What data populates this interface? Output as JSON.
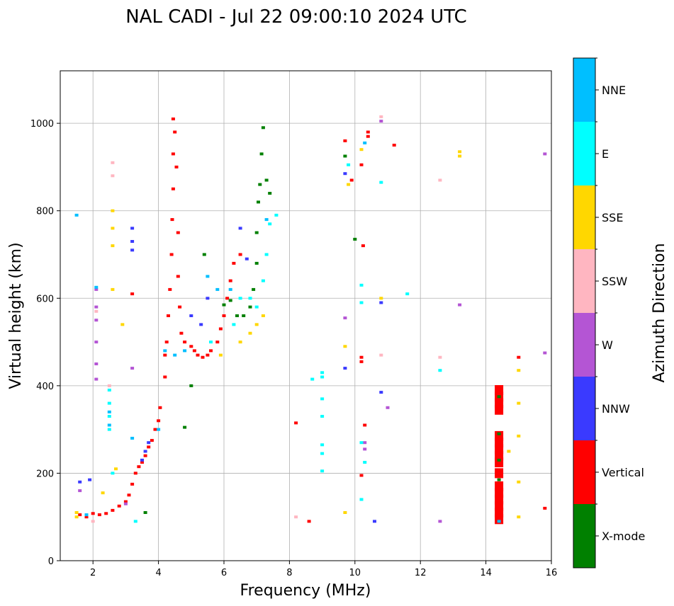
{
  "chart_data": {
    "type": "scatter",
    "title": "NAL CADI - Jul 22 09:00:10 2024 UTC",
    "xlabel": "Frequency (MHz)",
    "ylabel": "Virtual height (km)",
    "xlim": [
      1,
      16
    ],
    "ylim": [
      0,
      1120
    ],
    "xticks": [
      2,
      4,
      6,
      8,
      10,
      12,
      14,
      16
    ],
    "yticks": [
      0,
      200,
      400,
      600,
      800,
      1000
    ],
    "grid": true,
    "colorbar": {
      "label": "Azimuth Direction",
      "categories": [
        {
          "name": "X-mode",
          "color": "#008000"
        },
        {
          "name": "Vertical",
          "color": "#ff0000"
        },
        {
          "name": "NNW",
          "color": "#3a3aff"
        },
        {
          "name": "W",
          "color": "#b455d4"
        },
        {
          "name": "SSW",
          "color": "#ffb6c1"
        },
        {
          "name": "SSE",
          "color": "#ffd700"
        },
        {
          "name": "E",
          "color": "#00ffff"
        },
        {
          "name": "NNE",
          "color": "#00bfff"
        }
      ]
    },
    "series": [
      {
        "name": "Vertical",
        "points": [
          [
            1.6,
            105
          ],
          [
            1.8,
            100
          ],
          [
            2.0,
            108
          ],
          [
            2.2,
            105
          ],
          [
            2.4,
            108
          ],
          [
            2.6,
            115
          ],
          [
            2.8,
            125
          ],
          [
            3.0,
            135
          ],
          [
            3.1,
            150
          ],
          [
            3.2,
            175
          ],
          [
            3.3,
            200
          ],
          [
            3.4,
            215
          ],
          [
            3.5,
            225
          ],
          [
            3.6,
            240
          ],
          [
            3.7,
            260
          ],
          [
            3.8,
            275
          ],
          [
            3.9,
            300
          ],
          [
            4.0,
            320
          ],
          [
            4.05,
            350
          ],
          [
            4.2,
            420
          ],
          [
            4.2,
            470
          ],
          [
            4.25,
            500
          ],
          [
            4.3,
            560
          ],
          [
            4.35,
            620
          ],
          [
            4.4,
            700
          ],
          [
            4.42,
            780
          ],
          [
            4.45,
            850
          ],
          [
            4.45,
            930
          ],
          [
            4.45,
            1010
          ],
          [
            4.5,
            980
          ],
          [
            4.55,
            900
          ],
          [
            4.6,
            750
          ],
          [
            4.6,
            650
          ],
          [
            4.65,
            580
          ],
          [
            4.7,
            520
          ],
          [
            4.8,
            500
          ],
          [
            5.0,
            490
          ],
          [
            5.1,
            480
          ],
          [
            5.2,
            470
          ],
          [
            5.35,
            465
          ],
          [
            5.5,
            470
          ],
          [
            5.6,
            480
          ],
          [
            5.8,
            500
          ],
          [
            5.9,
            530
          ],
          [
            6.0,
            560
          ],
          [
            6.1,
            600
          ],
          [
            6.2,
            640
          ],
          [
            6.3,
            680
          ],
          [
            6.5,
            700
          ],
          [
            3.2,
            610
          ],
          [
            8.2,
            315
          ],
          [
            8.6,
            90
          ],
          [
            9.7,
            960
          ],
          [
            9.9,
            870
          ],
          [
            10.2,
            905
          ],
          [
            10.2,
            455
          ],
          [
            10.2,
            465
          ],
          [
            10.25,
            720
          ],
          [
            10.4,
            980
          ],
          [
            10.4,
            970
          ],
          [
            11.2,
            950
          ],
          [
            10.3,
            310
          ],
          [
            10.2,
            195
          ],
          [
            15.0,
            465
          ],
          [
            15.8,
            120
          ],
          [
            14.4,
            95
          ],
          [
            14.4,
            110
          ],
          [
            14.4,
            125
          ],
          [
            14.4,
            140
          ],
          [
            14.4,
            155
          ],
          [
            14.4,
            170
          ],
          [
            14.4,
            200
          ],
          [
            14.4,
            225
          ],
          [
            14.4,
            240
          ],
          [
            14.4,
            255
          ],
          [
            14.4,
            270
          ],
          [
            14.4,
            285
          ],
          [
            14.4,
            345
          ],
          [
            14.4,
            360
          ],
          [
            14.4,
            375
          ],
          [
            14.4,
            390
          ]
        ]
      },
      {
        "name": "X-mode",
        "points": [
          [
            4.8,
            305
          ],
          [
            5.0,
            400
          ],
          [
            5.4,
            700
          ],
          [
            6.0,
            585
          ],
          [
            6.2,
            595
          ],
          [
            6.4,
            560
          ],
          [
            6.6,
            560
          ],
          [
            6.8,
            580
          ],
          [
            6.9,
            620
          ],
          [
            7.0,
            680
          ],
          [
            7.0,
            750
          ],
          [
            7.05,
            820
          ],
          [
            7.1,
            860
          ],
          [
            7.15,
            930
          ],
          [
            7.2,
            990
          ],
          [
            7.3,
            870
          ],
          [
            7.4,
            840
          ],
          [
            3.6,
            110
          ],
          [
            10.0,
            735
          ],
          [
            14.4,
            230
          ],
          [
            14.4,
            290
          ],
          [
            14.4,
            375
          ],
          [
            14.4,
            185
          ],
          [
            9.7,
            925
          ]
        ]
      },
      {
        "name": "NNW",
        "points": [
          [
            3.2,
            710
          ],
          [
            3.2,
            730
          ],
          [
            3.2,
            760
          ],
          [
            3.5,
            230
          ],
          [
            3.6,
            250
          ],
          [
            3.7,
            270
          ],
          [
            5.0,
            560
          ],
          [
            5.3,
            540
          ],
          [
            5.5,
            600
          ],
          [
            6.5,
            760
          ],
          [
            6.7,
            690
          ],
          [
            9.7,
            885
          ],
          [
            9.7,
            440
          ],
          [
            10.6,
            90
          ],
          [
            10.8,
            385
          ],
          [
            10.8,
            590
          ],
          [
            1.6,
            180
          ],
          [
            1.9,
            185
          ]
        ]
      },
      {
        "name": "W",
        "points": [
          [
            1.6,
            160
          ],
          [
            2.1,
            620
          ],
          [
            2.1,
            580
          ],
          [
            2.1,
            550
          ],
          [
            2.1,
            500
          ],
          [
            2.1,
            450
          ],
          [
            2.1,
            415
          ],
          [
            3.2,
            440
          ],
          [
            3.0,
            130
          ],
          [
            9.7,
            555
          ],
          [
            10.3,
            270
          ],
          [
            10.3,
            255
          ],
          [
            11.0,
            350
          ],
          [
            12.6,
            90
          ],
          [
            13.2,
            585
          ],
          [
            15.8,
            475
          ],
          [
            15.8,
            930
          ],
          [
            10.8,
            1005
          ]
        ]
      },
      {
        "name": "SSW",
        "points": [
          [
            2.6,
            910
          ],
          [
            2.6,
            880
          ],
          [
            2.5,
            400
          ],
          [
            2.0,
            90
          ],
          [
            8.2,
            100
          ],
          [
            12.6,
            870
          ],
          [
            12.6,
            465
          ],
          [
            10.8,
            470
          ],
          [
            10.8,
            1015
          ],
          [
            2.1,
            570
          ]
        ]
      },
      {
        "name": "SSE",
        "points": [
          [
            1.5,
            100
          ],
          [
            1.5,
            110
          ],
          [
            2.6,
            800
          ],
          [
            2.6,
            760
          ],
          [
            2.6,
            720
          ],
          [
            2.6,
            620
          ],
          [
            2.9,
            540
          ],
          [
            2.7,
            210
          ],
          [
            2.3,
            155
          ],
          [
            5.9,
            470
          ],
          [
            6.5,
            500
          ],
          [
            6.8,
            520
          ],
          [
            7.0,
            540
          ],
          [
            7.2,
            560
          ],
          [
            9.7,
            490
          ],
          [
            9.7,
            110
          ],
          [
            9.8,
            860
          ],
          [
            10.2,
            940
          ],
          [
            10.8,
            600
          ],
          [
            13.2,
            935
          ],
          [
            13.2,
            925
          ],
          [
            14.7,
            250
          ],
          [
            15.0,
            360
          ],
          [
            15.0,
            285
          ],
          [
            15.0,
            180
          ],
          [
            15.0,
            100
          ],
          [
            15.0,
            435
          ]
        ]
      },
      {
        "name": "E",
        "points": [
          [
            2.5,
            300
          ],
          [
            2.5,
            330
          ],
          [
            2.5,
            360
          ],
          [
            2.5,
            390
          ],
          [
            2.6,
            200
          ],
          [
            3.3,
            90
          ],
          [
            5.6,
            500
          ],
          [
            6.3,
            540
          ],
          [
            6.5,
            600
          ],
          [
            6.8,
            600
          ],
          [
            7.0,
            580
          ],
          [
            7.2,
            640
          ],
          [
            7.3,
            700
          ],
          [
            7.4,
            770
          ],
          [
            7.6,
            790
          ],
          [
            8.7,
            415
          ],
          [
            9.0,
            430
          ],
          [
            9.0,
            420
          ],
          [
            9.0,
            370
          ],
          [
            9.0,
            330
          ],
          [
            9.0,
            265
          ],
          [
            9.0,
            245
          ],
          [
            9.0,
            205
          ],
          [
            9.8,
            905
          ],
          [
            10.2,
            630
          ],
          [
            10.2,
            590
          ],
          [
            10.2,
            270
          ],
          [
            10.2,
            140
          ],
          [
            10.8,
            865
          ],
          [
            11.6,
            610
          ],
          [
            12.6,
            435
          ],
          [
            10.3,
            225
          ]
        ]
      },
      {
        "name": "NNE",
        "points": [
          [
            1.5,
            790
          ],
          [
            1.8,
            105
          ],
          [
            2.1,
            625
          ],
          [
            2.5,
            310
          ],
          [
            2.5,
            340
          ],
          [
            3.2,
            280
          ],
          [
            4.0,
            300
          ],
          [
            4.2,
            480
          ],
          [
            4.5,
            470
          ],
          [
            4.8,
            480
          ],
          [
            5.5,
            650
          ],
          [
            5.8,
            620
          ],
          [
            6.2,
            620
          ],
          [
            7.3,
            780
          ],
          [
            10.3,
            955
          ],
          [
            14.4,
            90
          ]
        ]
      }
    ]
  }
}
